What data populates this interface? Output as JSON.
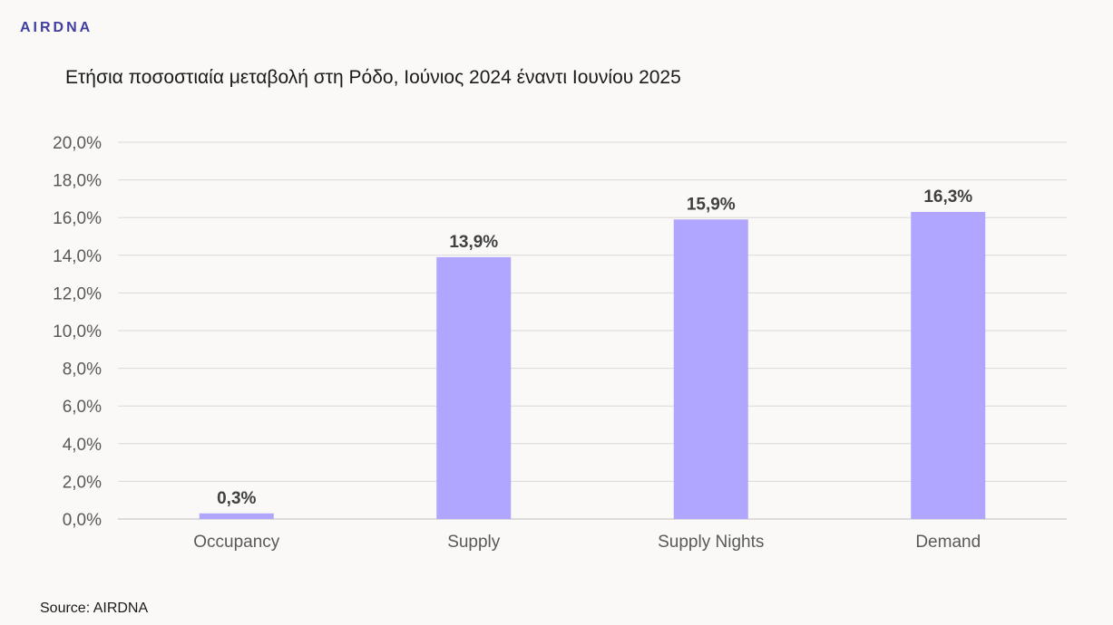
{
  "logo": "AIRDNA",
  "source": "Source: AIRDNA",
  "colors": {
    "bar": "#b0a6ff",
    "grid": "#d9d9d9",
    "axis": "#bfbfbf"
  },
  "chart_data": {
    "type": "bar",
    "title": "Ετήσια ποσοστιαία μεταβολή στη Ρόδο, Ιούνιος 2024 έναντι Ιουνίου 2025",
    "categories": [
      "Occupancy",
      "Supply",
      "Supply Nights",
      "Demand"
    ],
    "values": [
      0.3,
      13.9,
      15.9,
      16.3
    ],
    "data_labels": [
      "0,3%",
      "13,9%",
      "15,9%",
      "16,3%"
    ],
    "ylim": [
      0,
      20
    ],
    "yticks": [
      0,
      2,
      4,
      6,
      8,
      10,
      12,
      14,
      16,
      18,
      20
    ],
    "ytick_labels": [
      "0,0%",
      "2,0%",
      "4,0%",
      "6,0%",
      "8,0%",
      "10,0%",
      "12,0%",
      "14,0%",
      "16,0%",
      "18,0%",
      "20,0%"
    ],
    "grid": true,
    "legend": "none"
  }
}
